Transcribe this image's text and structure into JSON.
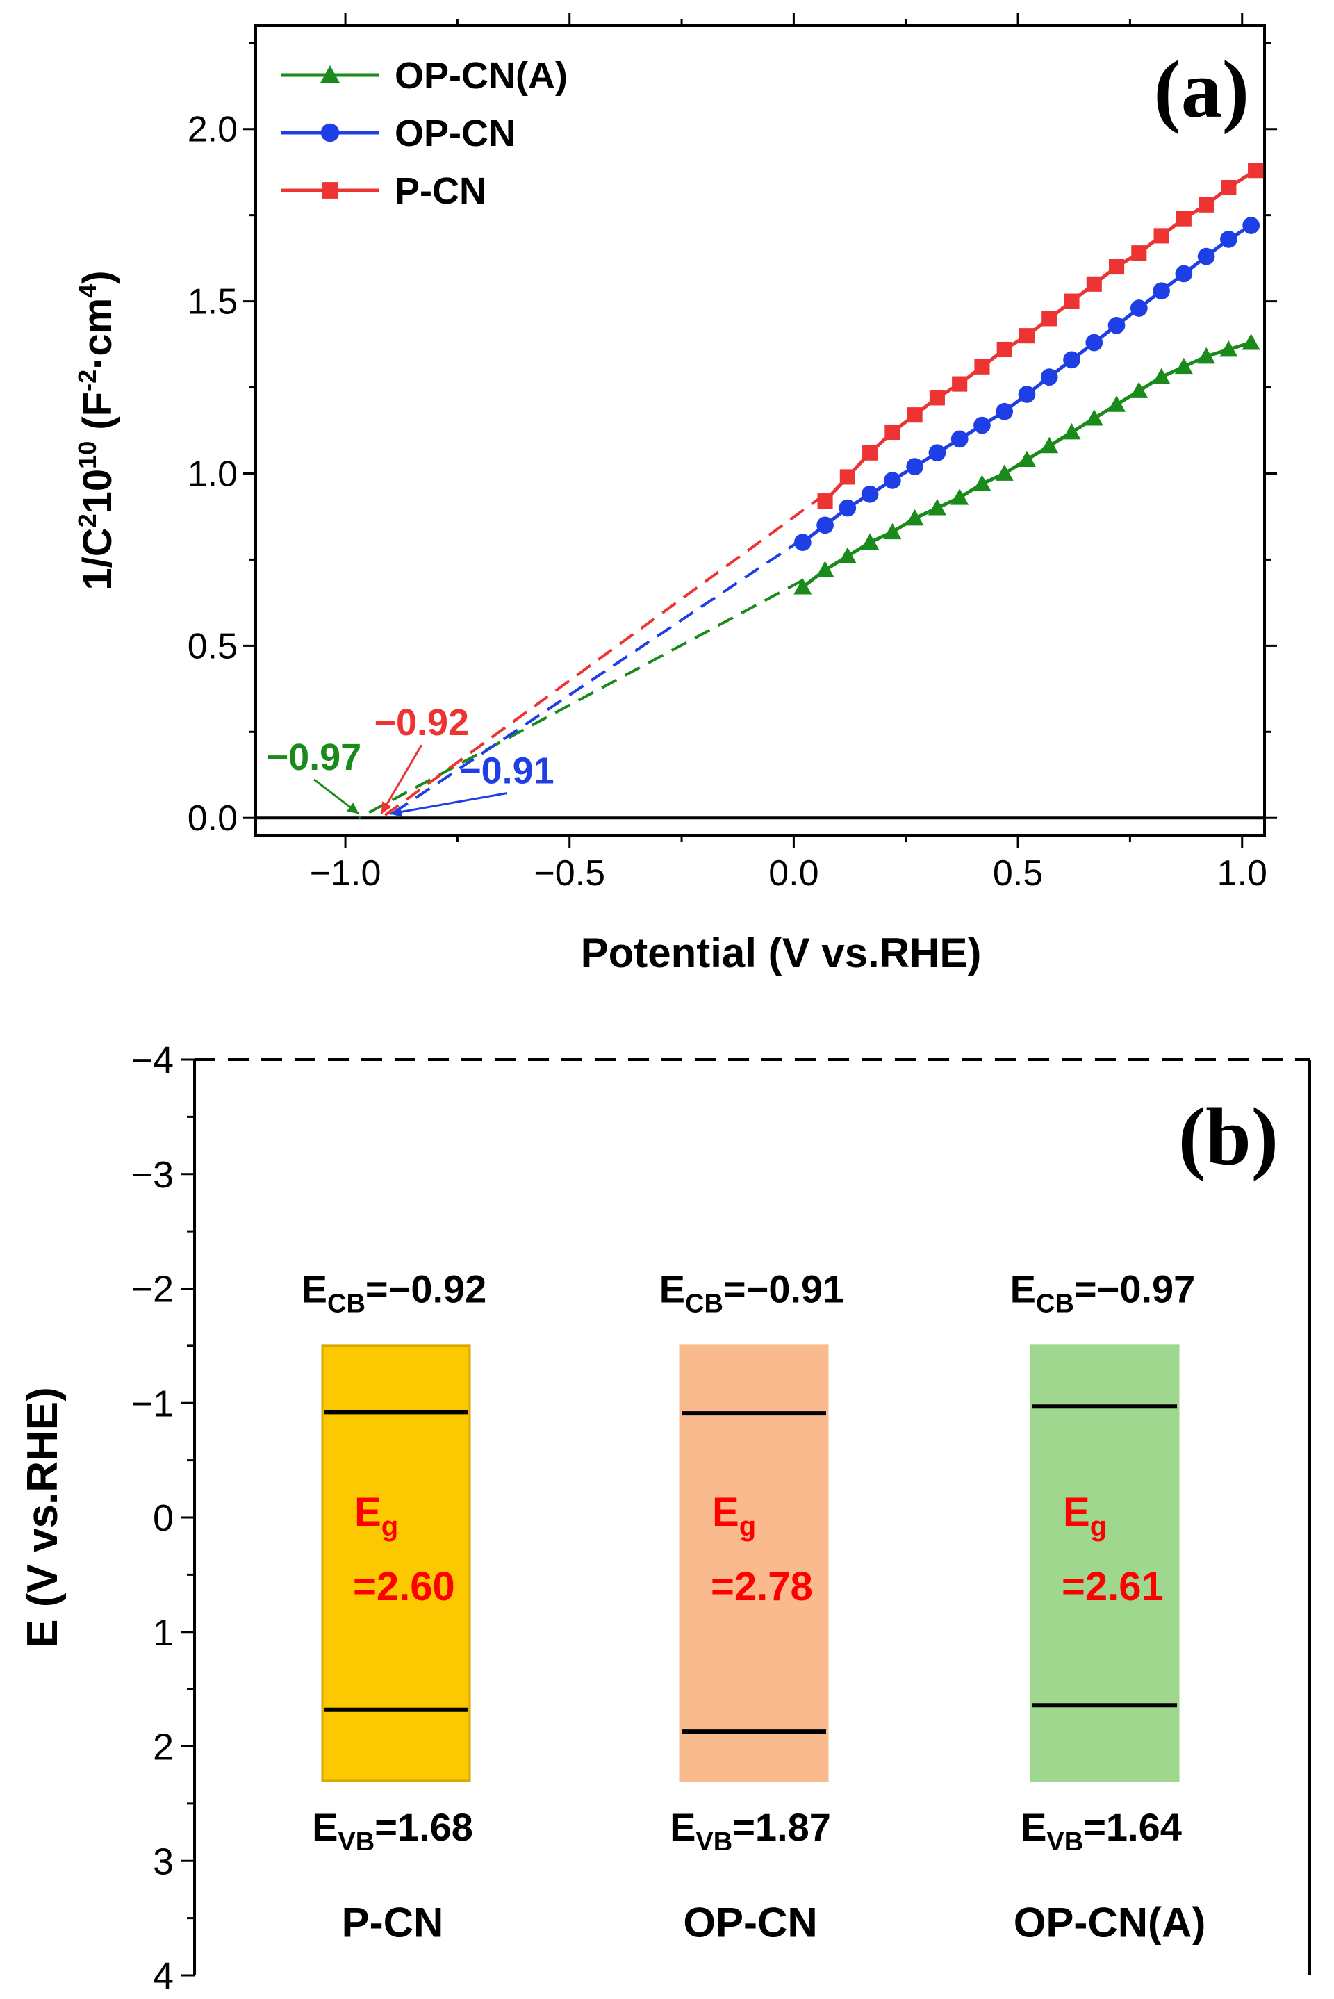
{
  "chart_data": [
    {
      "panel": "(a)",
      "type": "line",
      "xlabel": "Potential (V vs.RHE)",
      "ylabel": {
        "base": "1/C",
        "sup1": "2",
        "mid": "10",
        "sup2": "10",
        "unit_open": " (F",
        "sup3": "-2",
        "unit_mid": "·cm",
        "sup4": "4",
        "unit_close": ")"
      },
      "xlim": [
        -1.2,
        1.05
      ],
      "ylim": [
        -0.05,
        2.3
      ],
      "x_ticks": [
        {
          "v": -1.0,
          "label": "−1.0"
        },
        {
          "v": -0.5,
          "label": "−0.5"
        },
        {
          "v": 0.0,
          "label": "0.0"
        },
        {
          "v": 0.5,
          "label": "0.5"
        },
        {
          "v": 1.0,
          "label": "1.0"
        }
      ],
      "y_ticks": [
        {
          "v": 0.0,
          "label": "0.0"
        },
        {
          "v": 0.5,
          "label": "0.5"
        },
        {
          "v": 1.0,
          "label": "1.0"
        },
        {
          "v": 1.5,
          "label": "1.5"
        },
        {
          "v": 2.0,
          "label": "2.0"
        }
      ],
      "legend_position": "top-left",
      "series": [
        {
          "name": "OP-CN(A)",
          "color": "#1a8a1a",
          "marker": "triangle",
          "x": [
            0.02,
            0.07,
            0.12,
            0.17,
            0.22,
            0.27,
            0.32,
            0.37,
            0.42,
            0.47,
            0.52,
            0.57,
            0.62,
            0.67,
            0.72,
            0.77,
            0.82,
            0.87,
            0.92,
            0.97,
            1.02
          ],
          "y": [
            0.67,
            0.72,
            0.76,
            0.8,
            0.83,
            0.87,
            0.9,
            0.93,
            0.97,
            1.0,
            1.04,
            1.08,
            1.12,
            1.16,
            1.2,
            1.24,
            1.28,
            1.31,
            1.34,
            1.36,
            1.38
          ]
        },
        {
          "name": "OP-CN",
          "color": "#1f3fe6",
          "marker": "circle",
          "x": [
            0.02,
            0.07,
            0.12,
            0.17,
            0.22,
            0.27,
            0.32,
            0.37,
            0.42,
            0.47,
            0.52,
            0.57,
            0.62,
            0.67,
            0.72,
            0.77,
            0.82,
            0.87,
            0.92,
            0.97,
            1.02
          ],
          "y": [
            0.8,
            0.85,
            0.9,
            0.94,
            0.98,
            1.02,
            1.06,
            1.1,
            1.14,
            1.18,
            1.23,
            1.28,
            1.33,
            1.38,
            1.43,
            1.48,
            1.53,
            1.58,
            1.63,
            1.68,
            1.72
          ]
        },
        {
          "name": "P-CN",
          "color": "#ee3333",
          "marker": "square",
          "x": [
            0.07,
            0.12,
            0.17,
            0.22,
            0.27,
            0.32,
            0.37,
            0.42,
            0.47,
            0.52,
            0.57,
            0.62,
            0.67,
            0.72,
            0.77,
            0.82,
            0.87,
            0.92,
            0.97,
            1.03
          ],
          "y": [
            0.92,
            0.99,
            1.06,
            1.12,
            1.17,
            1.22,
            1.26,
            1.31,
            1.36,
            1.4,
            1.45,
            1.5,
            1.55,
            1.6,
            1.64,
            1.69,
            1.74,
            1.78,
            1.83,
            1.88
          ]
        }
      ],
      "extrapolations": [
        {
          "series": "OP-CN(A)",
          "color": "#1a8a1a",
          "from": [
            0.02,
            0.69
          ],
          "to": [
            -0.97,
            0.0
          ]
        },
        {
          "series": "OP-CN",
          "color": "#1f3fe6",
          "from": [
            0.02,
            0.81
          ],
          "to": [
            -0.91,
            0.0
          ]
        },
        {
          "series": "P-CN",
          "color": "#ee3333",
          "from": [
            0.07,
            0.94
          ],
          "to": [
            -0.92,
            0.0
          ]
        }
      ],
      "baseline_y": 0.0,
      "annotations": [
        {
          "text": "−0.97",
          "color": "#1a8a1a",
          "at": [
            -0.97,
            0.0
          ],
          "label_at": [
            -1.07,
            0.14
          ]
        },
        {
          "text": "−0.92",
          "color": "#ee3333",
          "at": [
            -0.92,
            0.0
          ],
          "label_at": [
            -0.83,
            0.24
          ]
        },
        {
          "text": "−0.91",
          "color": "#1f3fe6",
          "at": [
            -0.9,
            0.0
          ],
          "label_at": [
            -0.64,
            0.1
          ]
        }
      ]
    },
    {
      "panel": "(b)",
      "type": "bar",
      "ylabel": "E (V vs.RHE)",
      "ylim": [
        -4,
        4
      ],
      "inverted": true,
      "y_ticks": [
        {
          "v": -4,
          "label": "−4"
        },
        {
          "v": -3,
          "label": "−3"
        },
        {
          "v": -2,
          "label": "−2"
        },
        {
          "v": -1,
          "label": "−1"
        },
        {
          "v": 0,
          "label": "0"
        },
        {
          "v": 1,
          "label": "1"
        },
        {
          "v": 2,
          "label": "2"
        },
        {
          "v": 3,
          "label": "3"
        },
        {
          "v": 4,
          "label": "4"
        }
      ],
      "block_range": [
        -1.5,
        2.3
      ],
      "categories": [
        "P-CN",
        "OP-CN",
        "OP-CN(A)"
      ],
      "bands": [
        {
          "name": "P-CN",
          "fill": "#fcc800",
          "border": "#d9a800",
          "cb": -0.92,
          "vb": 1.68,
          "cb_label": "=−0.92",
          "vb_label": "=1.68",
          "eg_label": "=2.60"
        },
        {
          "name": "OP-CN",
          "fill": "#f9bb8e",
          "border": "#f9bb8e",
          "cb": -0.91,
          "vb": 1.87,
          "cb_label": "=−0.91",
          "vb_label": "=1.87",
          "eg_label": "=2.78"
        },
        {
          "name": "OP-CN(A)",
          "fill": "#9ed78d",
          "border": "#9ed78d",
          "cb": -0.97,
          "vb": 1.64,
          "cb_label": "=−0.97",
          "vb_label": "=1.64",
          "eg_label": "=2.61"
        }
      ],
      "symbols": {
        "e": "E",
        "cb_sub": "CB",
        "vb_sub": "VB",
        "eg_sub": "g"
      },
      "eg_color": "#ff0000"
    }
  ]
}
